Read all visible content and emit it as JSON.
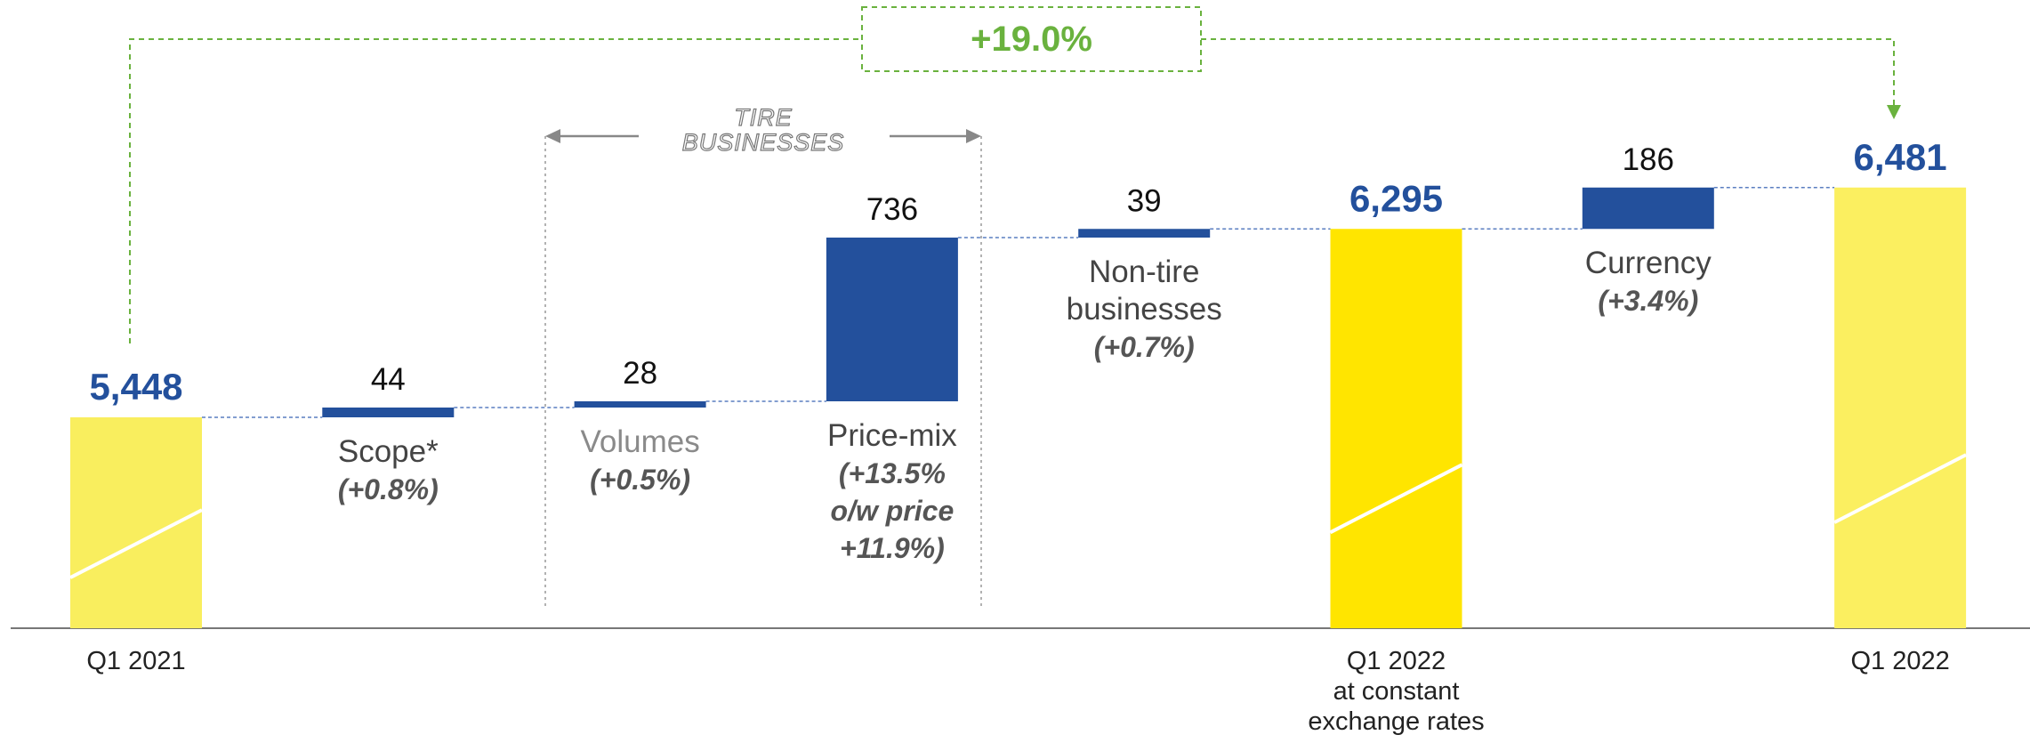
{
  "chart_data": {
    "type": "waterfall",
    "categories": [
      "Q1 2021",
      "Scope*",
      "Volumes",
      "Price-mix",
      "Non-tire\nbusinesses",
      "Q1 2022\nat constant\nexchange rates",
      "Currency",
      "Q1 2022"
    ],
    "values": [
      5448,
      44,
      28,
      736,
      39,
      6295,
      186,
      6481
    ],
    "value_labels": [
      "5,448",
      "44",
      "28",
      "736",
      "39",
      "6,295",
      "186",
      "6,481"
    ],
    "measures": [
      "absolute",
      "relative",
      "relative",
      "relative",
      "relative",
      "total",
      "relative",
      "total"
    ],
    "changes": [
      null,
      "(+0.8%)",
      "(+0.5%)",
      "(+13.5%\no/w price\n+11.9%)",
      "(+0.7%)",
      null,
      "(+3.4%)",
      null
    ],
    "colors": [
      "#f9ee5e",
      "#23509c",
      "#23509c",
      "#23509c",
      "#23509c",
      "#ffe500",
      "#23509c",
      "#fbef60"
    ],
    "label_colors": [
      "#222222",
      "#444444",
      "#8a8a8a",
      "#444444",
      "#444444",
      "#222222",
      "#444444",
      "#222222"
    ],
    "ylim": [
      4500,
      6600
    ],
    "bracket_label": "TIRE\nBUSINESSES",
    "growth_label": "+19.0%"
  }
}
